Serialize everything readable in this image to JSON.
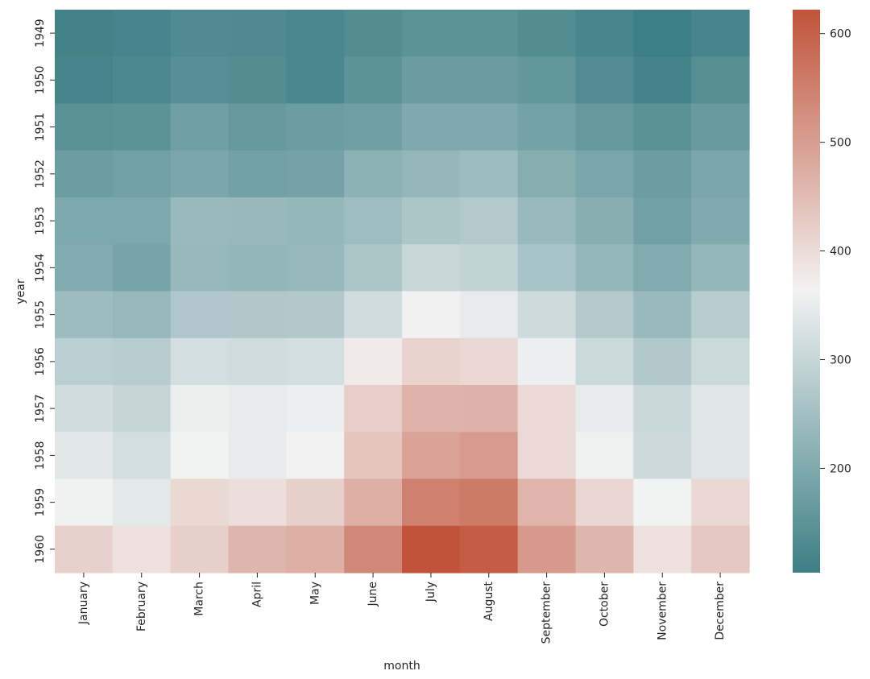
{
  "chart_data": {
    "type": "heatmap",
    "title": "",
    "xlabel": "month",
    "ylabel": "year",
    "x_categories": [
      "January",
      "February",
      "March",
      "April",
      "May",
      "June",
      "July",
      "August",
      "September",
      "October",
      "November",
      "December"
    ],
    "y_categories": [
      "1949",
      "1950",
      "1951",
      "1952",
      "1953",
      "1954",
      "1955",
      "1956",
      "1957",
      "1958",
      "1959",
      "1960"
    ],
    "values": [
      [
        112,
        118,
        132,
        129,
        121,
        135,
        148,
        148,
        136,
        119,
        104,
        118
      ],
      [
        115,
        126,
        141,
        135,
        125,
        149,
        170,
        170,
        158,
        133,
        114,
        140
      ],
      [
        145,
        150,
        178,
        163,
        172,
        178,
        199,
        199,
        184,
        162,
        146,
        166
      ],
      [
        171,
        180,
        193,
        181,
        183,
        218,
        230,
        242,
        209,
        191,
        172,
        194
      ],
      [
        196,
        196,
        236,
        235,
        229,
        243,
        264,
        272,
        237,
        211,
        180,
        201
      ],
      [
        204,
        188,
        235,
        227,
        234,
        264,
        302,
        293,
        259,
        229,
        203,
        229
      ],
      [
        242,
        233,
        267,
        269,
        270,
        315,
        364,
        347,
        312,
        274,
        237,
        278
      ],
      [
        284,
        277,
        317,
        313,
        318,
        374,
        413,
        405,
        355,
        306,
        271,
        306
      ],
      [
        315,
        301,
        356,
        348,
        355,
        422,
        465,
        467,
        404,
        347,
        305,
        336
      ],
      [
        340,
        318,
        362,
        348,
        363,
        435,
        491,
        505,
        404,
        359,
        310,
        337
      ],
      [
        360,
        342,
        406,
        396,
        420,
        472,
        548,
        559,
        463,
        407,
        362,
        405
      ],
      [
        417,
        391,
        419,
        461,
        472,
        535,
        622,
        606,
        508,
        461,
        390,
        432
      ]
    ],
    "colorbar": {
      "min": 104,
      "max": 622,
      "ticks": [
        200,
        300,
        400,
        500,
        600
      ],
      "low_color": "#3c7f85",
      "mid_color": "#f2f2f2",
      "high_color": "#c1533a"
    }
  }
}
